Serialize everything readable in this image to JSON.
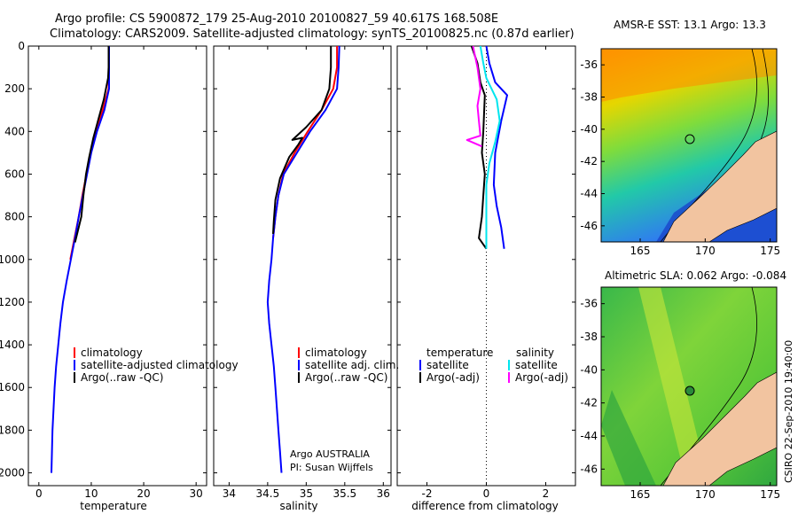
{
  "figure": {
    "title_line1": "Argo profile: CS 5900872_179 25-Aug-2010 20100827_59 40.617S 168.508E",
    "title_line2": "Climatology: CARS2009. Satellite-adjusted climatology: synTS_20100825.nc (0.87d earlier)",
    "side_text": "CSIRO 22-Sep-2010 19:40:00",
    "credit_line1": "Argo AUSTRALIA",
    "credit_line2": "PI: Susan Wijffels"
  },
  "colors": {
    "climatology": "#ff0000",
    "satellite": "#0000ff",
    "argo": "#000000",
    "satellite_diff_salinity": "#00e5ee",
    "argo_diff_salinity": "#ff00ff",
    "land": "#f2c4a0"
  },
  "chart_data": [
    {
      "type": "line",
      "id": "temperature",
      "xlabel": "temperature",
      "ylabel": "",
      "xlim": [
        -2,
        32
      ],
      "ylim": [
        2060,
        0
      ],
      "y_reversed": true,
      "xticks": [
        0,
        10,
        20,
        30
      ],
      "yticks": [
        0,
        200,
        400,
        600,
        800,
        1000,
        1200,
        1400,
        1600,
        1800,
        2000
      ],
      "legend": [
        "climatology",
        "satellite-adjusted climatology",
        "Argo(..raw -QC)"
      ],
      "series": [
        {
          "name": "climatology",
          "color": "#ff0000",
          "points": [
            [
              13.4,
              0
            ],
            [
              13.4,
              100
            ],
            [
              13.3,
              200
            ],
            [
              12.2,
              300
            ],
            [
              10.9,
              400
            ],
            [
              9.9,
              500
            ],
            [
              9.1,
              600
            ],
            [
              8.3,
              700
            ],
            [
              7.6,
              800
            ],
            [
              6.8,
              900
            ],
            [
              6.0,
              1000
            ]
          ]
        },
        {
          "name": "satellite-adjusted climatology",
          "color": "#0000ff",
          "points": [
            [
              13.4,
              0
            ],
            [
              13.4,
              100
            ],
            [
              13.4,
              200
            ],
            [
              12.5,
              300
            ],
            [
              11.1,
              400
            ],
            [
              10.0,
              500
            ],
            [
              9.2,
              600
            ],
            [
              8.4,
              700
            ],
            [
              7.6,
              800
            ],
            [
              6.9,
              900
            ],
            [
              6.1,
              1000
            ],
            [
              5.3,
              1100
            ],
            [
              4.6,
              1200
            ],
            [
              4.1,
              1300
            ],
            [
              3.7,
              1400
            ],
            [
              3.3,
              1500
            ],
            [
              3.0,
              1600
            ],
            [
              2.8,
              1700
            ],
            [
              2.6,
              1800
            ],
            [
              2.5,
              1900
            ],
            [
              2.4,
              2000
            ]
          ]
        },
        {
          "name": "Argo(..raw -QC)",
          "color": "#000000",
          "points": [
            [
              13.3,
              0
            ],
            [
              13.3,
              100
            ],
            [
              13.2,
              150
            ],
            [
              12.4,
              250
            ],
            [
              11.5,
              330
            ],
            [
              10.4,
              430
            ],
            [
              9.6,
              520
            ],
            [
              9.0,
              600
            ],
            [
              8.5,
              700
            ],
            [
              8.1,
              800
            ],
            [
              7.3,
              880
            ],
            [
              6.9,
              920
            ]
          ]
        }
      ]
    },
    {
      "type": "line",
      "id": "salinity",
      "xlabel": "salinity",
      "ylabel": "",
      "xlim": [
        33.8,
        36.1
      ],
      "ylim": [
        2060,
        0
      ],
      "y_reversed": true,
      "xticks": [
        34,
        34.5,
        35,
        35.5,
        36
      ],
      "legend": [
        "climatology",
        "satellite adj. clim.",
        "Argo(..raw -QC)"
      ],
      "series": [
        {
          "name": "climatology",
          "color": "#ff0000",
          "points": [
            [
              35.4,
              0
            ],
            [
              35.4,
              100
            ],
            [
              35.35,
              200
            ],
            [
              35.2,
              300
            ],
            [
              35.02,
              400
            ],
            [
              34.85,
              500
            ],
            [
              34.7,
              600
            ],
            [
              34.64,
              700
            ],
            [
              34.6,
              800
            ],
            [
              34.57,
              900
            ]
          ]
        },
        {
          "name": "satellite adj. clim.",
          "color": "#0000ff",
          "points": [
            [
              35.43,
              0
            ],
            [
              35.42,
              100
            ],
            [
              35.4,
              200
            ],
            [
              35.25,
              300
            ],
            [
              35.05,
              400
            ],
            [
              34.88,
              500
            ],
            [
              34.71,
              600
            ],
            [
              34.64,
              700
            ],
            [
              34.6,
              800
            ],
            [
              34.57,
              900
            ],
            [
              34.55,
              1000
            ],
            [
              34.52,
              1100
            ],
            [
              34.5,
              1200
            ],
            [
              34.52,
              1300
            ],
            [
              34.55,
              1400
            ],
            [
              34.58,
              1500
            ],
            [
              34.6,
              1600
            ],
            [
              34.62,
              1700
            ],
            [
              34.64,
              1800
            ],
            [
              34.66,
              1900
            ],
            [
              34.68,
              2000
            ]
          ]
        },
        {
          "name": "Argo(..raw -QC)",
          "color": "#000000",
          "points": [
            [
              35.32,
              0
            ],
            [
              35.32,
              100
            ],
            [
              35.3,
              200
            ],
            [
              35.2,
              300
            ],
            [
              35.0,
              380
            ],
            [
              34.88,
              420
            ],
            [
              34.82,
              440
            ],
            [
              34.95,
              430
            ],
            [
              34.9,
              460
            ],
            [
              34.78,
              520
            ],
            [
              34.66,
              620
            ],
            [
              34.6,
              720
            ],
            [
              34.58,
              820
            ],
            [
              34.57,
              880
            ]
          ]
        }
      ]
    },
    {
      "type": "line",
      "id": "difference",
      "xlabel": "difference from climatology",
      "ylabel": "",
      "xlim": [
        -3,
        3
      ],
      "ylim": [
        2060,
        0
      ],
      "y_reversed": true,
      "xticks": [
        -2,
        0,
        2
      ],
      "zero_line": 0,
      "legend_headers": [
        "temperature",
        "salinity"
      ],
      "legend": [
        "satellite",
        "Argo(-adj)",
        "satellite",
        "Argo(-adj)"
      ],
      "series": [
        {
          "name": "satellite",
          "group": "temperature",
          "color": "#0000ff",
          "points": [
            [
              0.0,
              0
            ],
            [
              0.1,
              80
            ],
            [
              0.3,
              170
            ],
            [
              0.7,
              230
            ],
            [
              0.5,
              350
            ],
            [
              0.3,
              500
            ],
            [
              0.25,
              650
            ],
            [
              0.35,
              750
            ],
            [
              0.5,
              850
            ],
            [
              0.6,
              950
            ]
          ]
        },
        {
          "name": "Argo(-adj)",
          "group": "temperature",
          "color": "#000000",
          "points": [
            [
              -0.5,
              0
            ],
            [
              -0.3,
              80
            ],
            [
              -0.2,
              170
            ],
            [
              -0.05,
              230
            ],
            [
              -0.1,
              400
            ],
            [
              -0.15,
              500
            ],
            [
              -0.05,
              600
            ],
            [
              -0.1,
              700
            ],
            [
              -0.15,
              800
            ],
            [
              -0.25,
              900
            ],
            [
              0.0,
              950
            ]
          ]
        },
        {
          "name": "satellite",
          "group": "salinity",
          "color": "#00e5ee",
          "points": [
            [
              -0.2,
              0
            ],
            [
              -0.1,
              80
            ],
            [
              0.0,
              150
            ],
            [
              0.35,
              250
            ],
            [
              0.45,
              350
            ],
            [
              0.3,
              450
            ],
            [
              0.1,
              550
            ],
            [
              0.0,
              650
            ],
            [
              0.0,
              800
            ],
            [
              0.0,
              950
            ]
          ]
        },
        {
          "name": "Argo(-adj)",
          "group": "salinity",
          "color": "#ff00ff",
          "points": [
            [
              -0.45,
              0
            ],
            [
              -0.3,
              100
            ],
            [
              -0.2,
              200
            ],
            [
              -0.3,
              280
            ],
            [
              -0.25,
              350
            ],
            [
              -0.2,
              420
            ],
            [
              -0.65,
              440
            ],
            [
              -0.15,
              470
            ]
          ]
        }
      ]
    }
  ],
  "maps": [
    {
      "id": "sst",
      "title": "AMSR-E SST: 13.1 Argo: 13.3",
      "xticks": [
        165,
        170,
        175
      ],
      "yticks": [
        -36,
        -38,
        -40,
        -42,
        -44,
        -46
      ],
      "xlim": [
        162,
        175.5
      ],
      "ylim": [
        -47,
        -35
      ],
      "marker": {
        "lon": 168.5,
        "lat": -40.6,
        "style": "open"
      }
    },
    {
      "id": "sla",
      "title": "Altimetric SLA: 0.062 Argo: -0.084",
      "xticks": [
        165,
        170,
        175
      ],
      "yticks": [
        -36,
        -38,
        -40,
        -42,
        -44,
        -46
      ],
      "xlim": [
        162,
        175.5
      ],
      "ylim": [
        -47,
        -35
      ],
      "marker": {
        "lon": 168.5,
        "lat": -40.6,
        "style": "filled"
      }
    }
  ]
}
